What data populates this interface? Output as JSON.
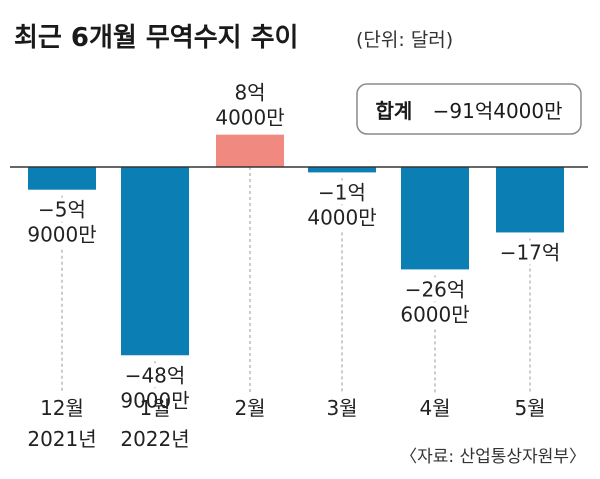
{
  "title": "최근 6개월 무역수지 추이",
  "unit_note": "(단위: 달러)",
  "total": {
    "label": "합계",
    "value": "−91억4000만"
  },
  "source": "〈자료: 산업통상자원부〉",
  "colors": {
    "negative": "#0b7fb4",
    "positive": "#f08a80",
    "axis": "#333333",
    "guide": "#999999"
  },
  "chart_data": {
    "type": "bar",
    "unit": "달러",
    "categories": [
      "12월 2021년",
      "1월 2022년",
      "2월",
      "3월",
      "4월",
      "5월"
    ],
    "category_lines": [
      [
        "12월",
        "2021년"
      ],
      [
        "1월",
        "2022년"
      ],
      [
        "2월"
      ],
      [
        "3월"
      ],
      [
        "4월"
      ],
      [
        "5월"
      ]
    ],
    "values": [
      -5.9,
      -48.9,
      8.4,
      -1.4,
      -26.6,
      -17.0
    ],
    "value_unit": "억 달러",
    "value_labels": [
      [
        "−5억",
        "9000만"
      ],
      [
        "−48억",
        "9000만"
      ],
      [
        "8억",
        "4000만"
      ],
      [
        "−1억",
        "4000만"
      ],
      [
        "−26억",
        "6000만"
      ],
      [
        "−17억"
      ]
    ],
    "grid": false,
    "legend": "none"
  }
}
